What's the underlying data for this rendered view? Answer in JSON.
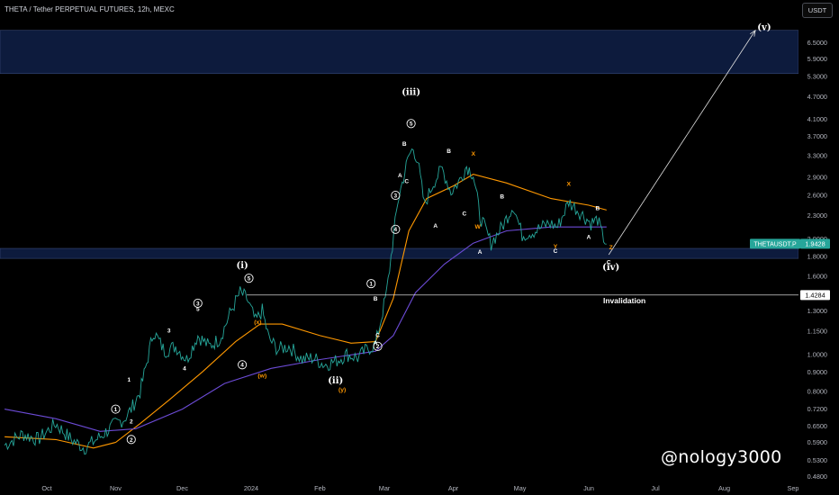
{
  "header": {
    "title": "THETA / Tether PERPETUAL FUTURES, 12h, MEXC",
    "currency_button": "USDT"
  },
  "watermark": "@nology3000",
  "chart_data": {
    "type": "line",
    "scale": "log",
    "ylim": [
      0.43,
      8.4
    ],
    "y_ticks": [
      "6.5000",
      "5.9000",
      "5.3000",
      "4.7000",
      "4.1000",
      "3.7000",
      "3.3000",
      "2.9000",
      "2.6000",
      "2.3000",
      "2.0000",
      "1.8000",
      "1.6000",
      "1.4284",
      "1.3000",
      "1.1500",
      "1.0000",
      "0.9000",
      "0.8000",
      "0.7200",
      "0.6500",
      "0.5900",
      "0.5300",
      "0.4800",
      "0.4360"
    ],
    "x_ticks": [
      "Oct",
      "Nov",
      "Dec",
      "2024",
      "Feb",
      "Mar",
      "Apr",
      "May",
      "Jun",
      "Jul",
      "Aug",
      "Sep"
    ],
    "x_tick_dates": [
      "2023-10-01",
      "2023-11-01",
      "2023-12-01",
      "2024-01-01",
      "2024-02-01",
      "2024-03-01",
      "2024-04-01",
      "2024-05-01",
      "2024-06-01",
      "2024-07-01",
      "2024-08-01",
      "2024-09-01"
    ],
    "price_series": {
      "name": "THETAUSDT.P",
      "color": "#26a69a",
      "points": [
        [
          "2023-09-12",
          0.58
        ],
        [
          "2023-09-20",
          0.62
        ],
        [
          "2023-09-27",
          0.6
        ],
        [
          "2023-10-05",
          0.66
        ],
        [
          "2023-10-12",
          0.6
        ],
        [
          "2023-10-18",
          0.57
        ],
        [
          "2023-10-25",
          0.61
        ],
        [
          "2023-11-01",
          0.66
        ],
        [
          "2023-11-05",
          0.68
        ],
        [
          "2023-11-08",
          0.72
        ],
        [
          "2023-11-12",
          0.8
        ],
        [
          "2023-11-15",
          0.95
        ],
        [
          "2023-11-18",
          1.15
        ],
        [
          "2023-11-23",
          1.02
        ],
        [
          "2023-11-28",
          1.05
        ],
        [
          "2023-12-03",
          0.97
        ],
        [
          "2023-12-08",
          1.12
        ],
        [
          "2023-12-13",
          1.05
        ],
        [
          "2023-12-18",
          1.1
        ],
        [
          "2023-12-23",
          1.3
        ],
        [
          "2023-12-27",
          1.45
        ],
        [
          "2023-12-30",
          1.4
        ],
        [
          "2024-01-03",
          1.22
        ],
        [
          "2024-01-06",
          1.3
        ],
        [
          "2024-01-09",
          1.1
        ],
        [
          "2024-01-13",
          1.03
        ],
        [
          "2024-01-18",
          1.05
        ],
        [
          "2024-01-24",
          0.97
        ],
        [
          "2024-01-29",
          0.98
        ],
        [
          "2024-02-03",
          0.94
        ],
        [
          "2024-02-08",
          0.96
        ],
        [
          "2024-02-13",
          1.0
        ],
        [
          "2024-02-18",
          0.98
        ],
        [
          "2024-02-22",
          1.03
        ],
        [
          "2024-02-26",
          1.06
        ],
        [
          "2024-02-28",
          1.2
        ],
        [
          "2024-03-02",
          1.45
        ],
        [
          "2024-03-04",
          1.8
        ],
        [
          "2024-03-07",
          2.5
        ],
        [
          "2024-03-09",
          2.8
        ],
        [
          "2024-03-12",
          3.3
        ],
        [
          "2024-03-14",
          3.45
        ],
        [
          "2024-03-16",
          3.2
        ],
        [
          "2024-03-19",
          2.45
        ],
        [
          "2024-03-23",
          2.8
        ],
        [
          "2024-03-27",
          3.05
        ],
        [
          "2024-03-31",
          2.65
        ],
        [
          "2024-04-04",
          2.85
        ],
        [
          "2024-04-07",
          3.1
        ],
        [
          "2024-04-10",
          2.95
        ],
        [
          "2024-04-13",
          2.3
        ],
        [
          "2024-04-18",
          1.95
        ],
        [
          "2024-04-23",
          2.15
        ],
        [
          "2024-04-28",
          2.45
        ],
        [
          "2024-05-02",
          2.05
        ],
        [
          "2024-05-08",
          2.1
        ],
        [
          "2024-05-14",
          2.2
        ],
        [
          "2024-05-18",
          2.15
        ],
        [
          "2024-05-23",
          2.5
        ],
        [
          "2024-05-28",
          2.35
        ],
        [
          "2024-06-02",
          2.2
        ],
        [
          "2024-06-05",
          2.25
        ],
        [
          "2024-06-07",
          2.05
        ],
        [
          "2024-06-09",
          1.94
        ]
      ]
    },
    "current_price": {
      "label": "THETAUSDT.P",
      "value": "1.9428"
    },
    "invalidation": {
      "value": "1.4284",
      "label": "Invalidation"
    },
    "moving_averages": [
      {
        "color": "#ff9800",
        "points": [
          [
            "2023-09-12",
            0.61
          ],
          [
            "2023-10-05",
            0.6
          ],
          [
            "2023-10-22",
            0.57
          ],
          [
            "2023-11-01",
            0.59
          ],
          [
            "2023-11-12",
            0.66
          ],
          [
            "2023-11-25",
            0.76
          ],
          [
            "2023-12-10",
            0.9
          ],
          [
            "2023-12-25",
            1.08
          ],
          [
            "2024-01-05",
            1.2
          ],
          [
            "2024-01-15",
            1.2
          ],
          [
            "2024-02-01",
            1.12
          ],
          [
            "2024-02-15",
            1.07
          ],
          [
            "2024-02-26",
            1.08
          ],
          [
            "2024-03-05",
            1.4
          ],
          [
            "2024-03-12",
            2.1
          ],
          [
            "2024-03-20",
            2.55
          ],
          [
            "2024-04-01",
            2.75
          ],
          [
            "2024-04-10",
            2.95
          ],
          [
            "2024-04-25",
            2.8
          ],
          [
            "2024-05-15",
            2.55
          ],
          [
            "2024-06-01",
            2.45
          ],
          [
            "2024-06-09",
            2.38
          ]
        ]
      },
      {
        "color": "#6c4bd6",
        "points": [
          [
            "2023-09-12",
            0.72
          ],
          [
            "2023-10-05",
            0.68
          ],
          [
            "2023-10-25",
            0.63
          ],
          [
            "2023-11-10",
            0.64
          ],
          [
            "2023-12-01",
            0.72
          ],
          [
            "2023-12-20",
            0.84
          ],
          [
            "2024-01-10",
            0.92
          ],
          [
            "2024-02-01",
            0.97
          ],
          [
            "2024-02-26",
            1.02
          ],
          [
            "2024-03-05",
            1.12
          ],
          [
            "2024-03-15",
            1.45
          ],
          [
            "2024-03-28",
            1.72
          ],
          [
            "2024-04-10",
            1.95
          ],
          [
            "2024-04-25",
            2.1
          ],
          [
            "2024-05-15",
            2.15
          ],
          [
            "2024-06-09",
            2.15
          ]
        ]
      }
    ],
    "zones": [
      {
        "from": 5.4,
        "to": 7.0,
        "color": "#0d1b3d"
      },
      {
        "from": 1.78,
        "to": 1.89,
        "color": "#0d1b3d"
      }
    ],
    "projection": {
      "from": [
        "2024-06-10",
        1.82
      ],
      "to": [
        "2024-08-15",
        7.0
      ]
    },
    "annotations": {
      "white_big": [
        {
          "text": "(i)",
          "date": "2023-12-28",
          "price": 1.68
        },
        {
          "text": "(ii)",
          "date": "2024-02-08",
          "price": 0.84
        },
        {
          "text": "(iii)",
          "date": "2024-03-13",
          "price": 4.75
        },
        {
          "text": "(iv)",
          "date": "2024-06-11",
          "price": 1.66
        },
        {
          "text": "(v)",
          "date": "2024-08-19",
          "price": 7.0
        }
      ],
      "circled": [
        {
          "text": "1",
          "date": "2023-11-01",
          "price": 0.72
        },
        {
          "text": "2",
          "date": "2023-11-08",
          "price": 0.6
        },
        {
          "text": "3",
          "date": "2023-12-08",
          "price": 1.36
        },
        {
          "text": "4",
          "date": "2023-12-28",
          "price": 0.94
        },
        {
          "text": "5",
          "date": "2023-12-31",
          "price": 1.58
        },
        {
          "text": "1",
          "date": "2024-02-24",
          "price": 1.53
        },
        {
          "text": "2",
          "date": "2024-02-27",
          "price": 1.05
        },
        {
          "text": "3",
          "date": "2024-03-06",
          "price": 2.6
        },
        {
          "text": "4",
          "date": "2024-03-06",
          "price": 2.12
        },
        {
          "text": "5",
          "date": "2024-03-13",
          "price": 4.0
        }
      ],
      "white_small": [
        {
          "text": "1",
          "date": "2023-11-07",
          "price": 0.85
        },
        {
          "text": "2",
          "date": "2023-11-08",
          "price": 0.66
        },
        {
          "text": "3",
          "date": "2023-11-25",
          "price": 1.14
        },
        {
          "text": "4",
          "date": "2023-12-02",
          "price": 0.91
        },
        {
          "text": "5",
          "date": "2023-12-08",
          "price": 1.3
        },
        {
          "text": "B",
          "date": "2024-02-26",
          "price": 1.38
        },
        {
          "text": "C",
          "date": "2024-02-27",
          "price": 1.11
        },
        {
          "text": "A",
          "date": "2024-02-26",
          "price": 1.06
        },
        {
          "text": "A",
          "date": "2024-03-08",
          "price": 2.9
        },
        {
          "text": "B",
          "date": "2024-03-10",
          "price": 3.5
        },
        {
          "text": "C",
          "date": "2024-03-11",
          "price": 2.8
        },
        {
          "text": "B",
          "date": "2024-03-30",
          "price": 3.35
        },
        {
          "text": "A",
          "date": "2024-03-24",
          "price": 2.14
        },
        {
          "text": "C",
          "date": "2024-04-06",
          "price": 2.3
        },
        {
          "text": "A",
          "date": "2024-04-13",
          "price": 1.83
        },
        {
          "text": "B",
          "date": "2024-04-23",
          "price": 2.55
        },
        {
          "text": "C",
          "date": "2024-05-17",
          "price": 1.84
        },
        {
          "text": "A",
          "date": "2024-06-01",
          "price": 2.0
        },
        {
          "text": "B",
          "date": "2024-06-05",
          "price": 2.38
        },
        {
          "text": "C",
          "date": "2024-06-10",
          "price": 1.72
        }
      ],
      "orange": [
        {
          "text": "(x)",
          "date": "2024-01-04",
          "price": 1.2
        },
        {
          "text": "(w)",
          "date": "2024-01-06",
          "price": 0.87
        },
        {
          "text": "(y)",
          "date": "2024-02-11",
          "price": 0.8
        },
        {
          "text": "X",
          "date": "2024-04-10",
          "price": 3.3
        },
        {
          "text": "W",
          "date": "2024-04-12",
          "price": 2.13
        },
        {
          "text": "X",
          "date": "2024-05-23",
          "price": 2.75
        },
        {
          "text": "Y",
          "date": "2024-05-17",
          "price": 1.89
        },
        {
          "text": "Z",
          "date": "2024-06-11",
          "price": 1.88
        }
      ]
    }
  }
}
